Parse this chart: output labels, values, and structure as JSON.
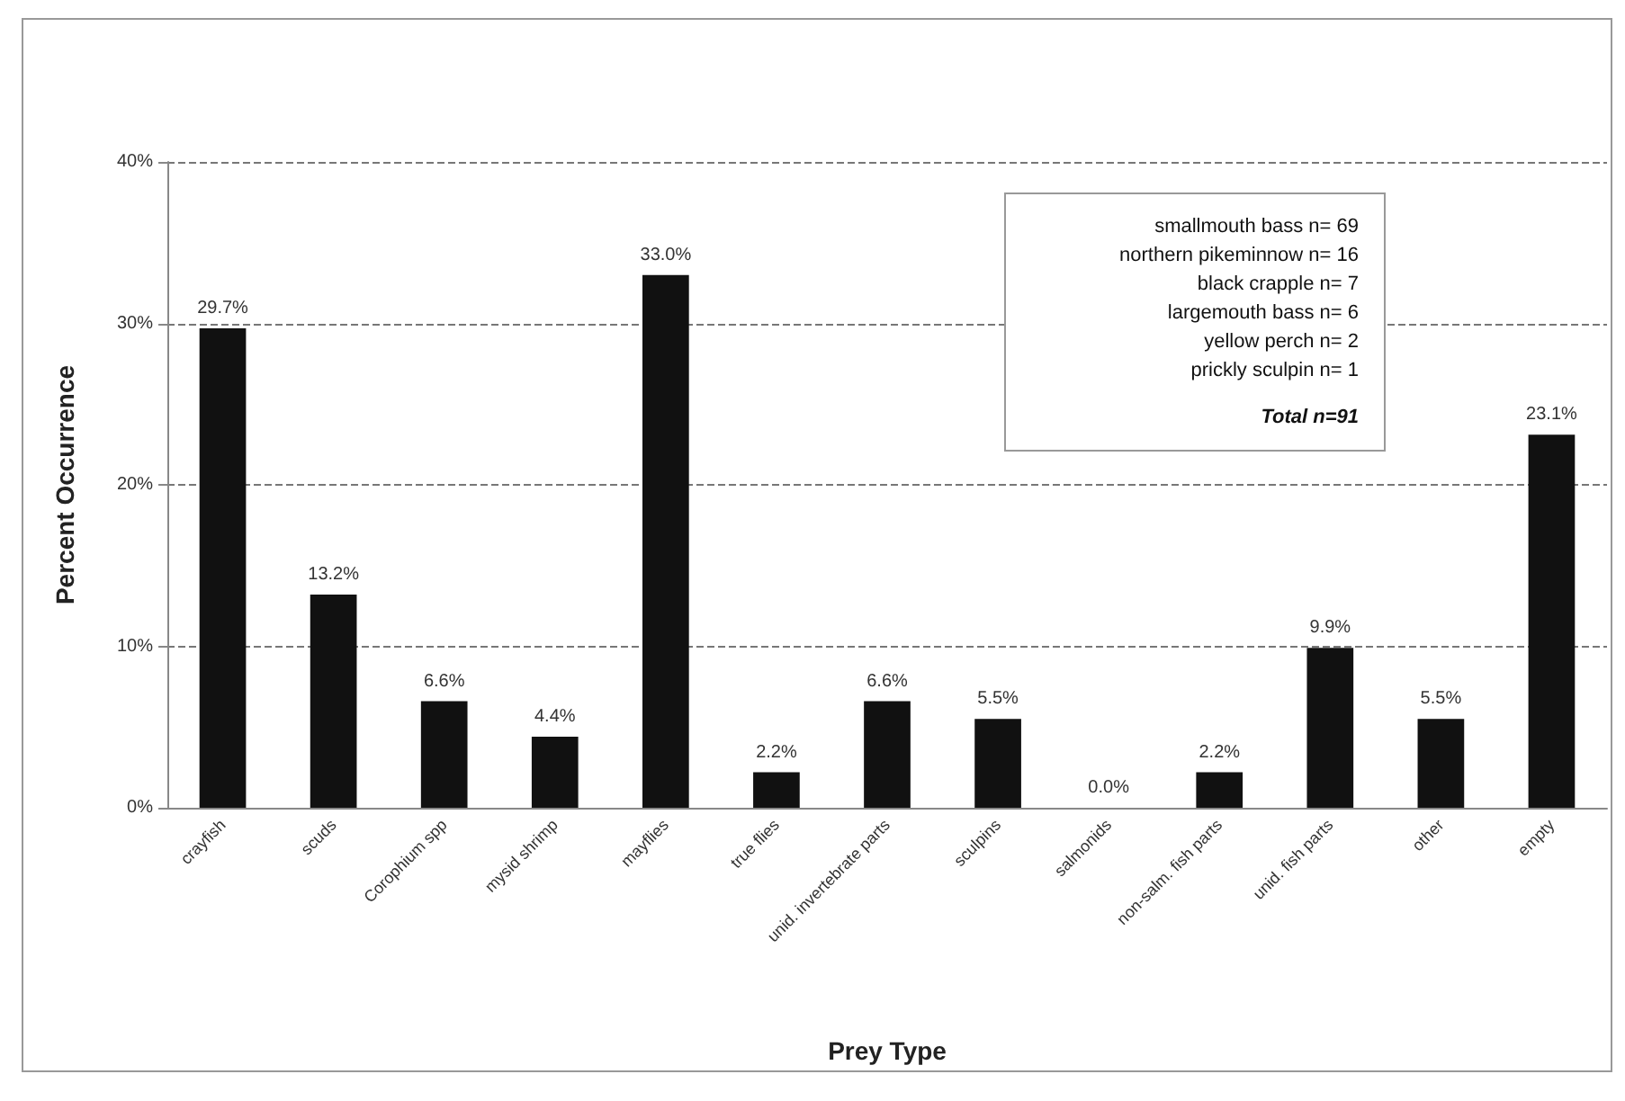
{
  "chart_data": {
    "type": "bar",
    "xlabel": "Prey Type",
    "ylabel": "Percent Occurrence",
    "categories": [
      "crayfish",
      "scuds",
      "Corophium spp",
      "mysid shrimp",
      "mayflies",
      "true flies",
      "unid. invertebrate parts",
      "sculpins",
      "salmonids",
      "non-salm. fish parts",
      "unid. fish parts",
      "other",
      "empty"
    ],
    "values": [
      29.7,
      13.2,
      6.6,
      4.4,
      33.0,
      2.2,
      6.6,
      5.5,
      0.0,
      2.2,
      9.9,
      5.5,
      23.1
    ],
    "value_labels": [
      "29.7%",
      "13.2%",
      "6.6%",
      "4.4%",
      "33.0%",
      "2.2%",
      "6.6%",
      "5.5%",
      "0.0%",
      "2.2%",
      "9.9%",
      "5.5%",
      "23.1%"
    ],
    "color": "#111111",
    "ylim": [
      0,
      40
    ],
    "yticks": [
      {
        "value": 0,
        "label": "0%"
      },
      {
        "value": 10,
        "label": "10%"
      },
      {
        "value": 20,
        "label": "20%"
      },
      {
        "value": 30,
        "label": "30%"
      },
      {
        "value": 40,
        "label": "40%"
      }
    ],
    "grid": "y",
    "annotations": [
      "smallmouth bass n= 69\nnorthern pikeminnow n= 16\nblack crapple n= 7\nlargemouth bass n= 6\nyellow perch n= 2\nprickly sculpin n= 1",
      "Total n=91"
    ]
  }
}
